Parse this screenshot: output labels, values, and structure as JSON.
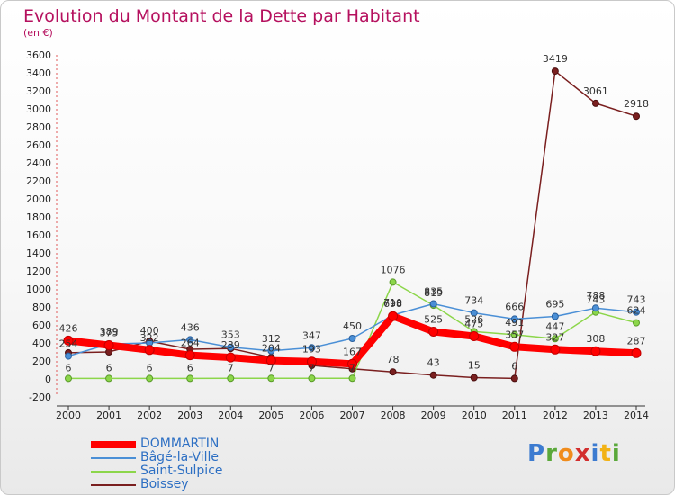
{
  "chart_data": {
    "type": "line",
    "title": "Evolution du Montant de la Dette par Habitant",
    "subtitle": "(en €)",
    "x": [
      "2000",
      "2001",
      "2002",
      "2003",
      "2004",
      "2005",
      "2006",
      "2007",
      "2008",
      "2009",
      "2010",
      "2011",
      "2012",
      "2013",
      "2014"
    ],
    "ylim": [
      -200,
      3600
    ],
    "yticks": [
      -200,
      0,
      200,
      400,
      600,
      800,
      1000,
      1200,
      1400,
      1600,
      1800,
      2000,
      2200,
      2400,
      2600,
      2800,
      3000,
      3200,
      3400,
      3600
    ],
    "grid": false,
    "legend_position": "bottom-left",
    "series": [
      {
        "name": "DOMMARTIN",
        "color": "#ff0000",
        "values": [
          426,
          375,
          322,
          264,
          239,
          204,
          193,
          167,
          698,
          525,
          475,
          357,
          327,
          308,
          287
        ],
        "labels": [
          "426",
          "375",
          "322",
          "264",
          "239",
          "204",
          "193",
          "167",
          "698",
          "525",
          "475",
          "357",
          "327",
          "308",
          "287"
        ]
      },
      {
        "name": "Bâgé-la-Ville",
        "color": "#4a8fd6",
        "values": [
          254,
          389,
          400,
          436,
          353,
          312,
          347,
          450,
          710,
          835,
          734,
          666,
          695,
          788,
          743
        ],
        "labels": [
          "254",
          "389",
          "400",
          "436",
          "353",
          "312",
          "347",
          "450",
          "710",
          "835",
          "734",
          "666",
          "695",
          "788",
          "743"
        ]
      },
      {
        "name": "Saint-Sulpice",
        "color": "#8cd64a",
        "values": [
          6,
          6,
          6,
          6,
          7,
          7,
          7,
          7,
          1076,
          819,
          526,
          491,
          447,
          743,
          624
        ],
        "labels": [
          "6",
          "6",
          "6",
          "6",
          "7",
          "7",
          "7",
          "7",
          "1076",
          "819",
          "526",
          "491",
          "447",
          "743",
          "624"
        ]
      },
      {
        "name": "Boissey",
        "color": "#7a1f1f",
        "values": [
          291,
          300,
          420,
          330,
          338,
          240,
          150,
          112,
          78,
          43,
          15,
          6,
          3419,
          3061,
          2918
        ],
        "labels": [
          "",
          "",
          "",
          "",
          "",
          "",
          "",
          "",
          "78",
          "43",
          "15",
          "6",
          "3419",
          "3061",
          "2918"
        ]
      }
    ]
  },
  "legend": {
    "items": [
      {
        "label": "DOMMARTIN",
        "color": "#ff0000",
        "width": 8
      },
      {
        "label": "Bâgé-la-Ville",
        "color": "#4a8fd6",
        "width": 1.5
      },
      {
        "label": "Saint-Sulpice",
        "color": "#8cd64a",
        "width": 1.5
      },
      {
        "label": "Boissey",
        "color": "#7a1f1f",
        "width": 1.5
      }
    ]
  },
  "brand": {
    "letters": [
      "P",
      "r",
      "o",
      "x",
      "i",
      "t",
      "i"
    ]
  }
}
